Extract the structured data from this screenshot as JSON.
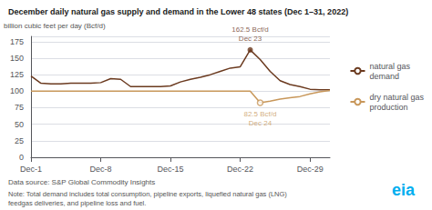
{
  "chart_data": {
    "type": "line",
    "title": "December daily natural gas supply and demand in the Lower 48 states (Dec 1–31, 2022)",
    "ylabel": "billion cubic feet per day (Bcf/d)",
    "x": [
      1,
      2,
      3,
      4,
      5,
      6,
      7,
      8,
      9,
      10,
      11,
      12,
      13,
      14,
      15,
      16,
      17,
      18,
      19,
      20,
      21,
      22,
      23,
      24,
      25,
      26,
      27,
      28,
      29,
      30,
      31
    ],
    "xlim": [
      1,
      31
    ],
    "xticks": [
      {
        "value": 1,
        "label": "Dec-1"
      },
      {
        "value": 8,
        "label": "Dec-8"
      },
      {
        "value": 15,
        "label": "Dec-15"
      },
      {
        "value": 22,
        "label": "Dec-22"
      },
      {
        "value": 29,
        "label": "Dec-29"
      }
    ],
    "ylim": [
      0,
      183
    ],
    "yticks": [
      0,
      25,
      50,
      75,
      100,
      125,
      150,
      175
    ],
    "grid": true,
    "legend": "right",
    "series": [
      {
        "name": "natural gas\ndemand",
        "color": "#6B3A1F",
        "values": [
          123,
          112,
          111,
          111,
          112,
          112,
          112,
          113,
          119,
          118,
          107,
          107,
          107,
          107,
          108,
          114,
          118,
          121,
          125,
          130,
          135,
          137,
          162.5,
          148,
          130,
          116,
          110,
          107,
          103,
          102,
          102
        ]
      },
      {
        "name": "dry natural gas\nproduction",
        "color": "#C8975A",
        "values": [
          100,
          100,
          100,
          100,
          100,
          100,
          100,
          100,
          100,
          100,
          100,
          100,
          100,
          100,
          100,
          100,
          100,
          100,
          100,
          100,
          100,
          100,
          100,
          82.5,
          85,
          88,
          90,
          92,
          96,
          99,
          101
        ]
      }
    ],
    "annotations": [
      {
        "text": "162.5 Bcf/d\nDec 23",
        "x": 23,
        "y": 162.5,
        "color": "#6B3A1F",
        "marker": "filled"
      },
      {
        "text": "82.5 Bcf/d\nDec 24",
        "x": 24,
        "y": 82.5,
        "color": "#C8975A",
        "marker": "hollow"
      }
    ],
    "footer": [
      "Data source: S&P Global Commodity Insights",
      "Note: Total demand includes total consumption, pipeline exports, liquefied natural gas (LNG) feedgas deliveries, and pipeline loss and fuel."
    ],
    "logo": {
      "text": "eia",
      "color": "#00AEEF"
    }
  }
}
